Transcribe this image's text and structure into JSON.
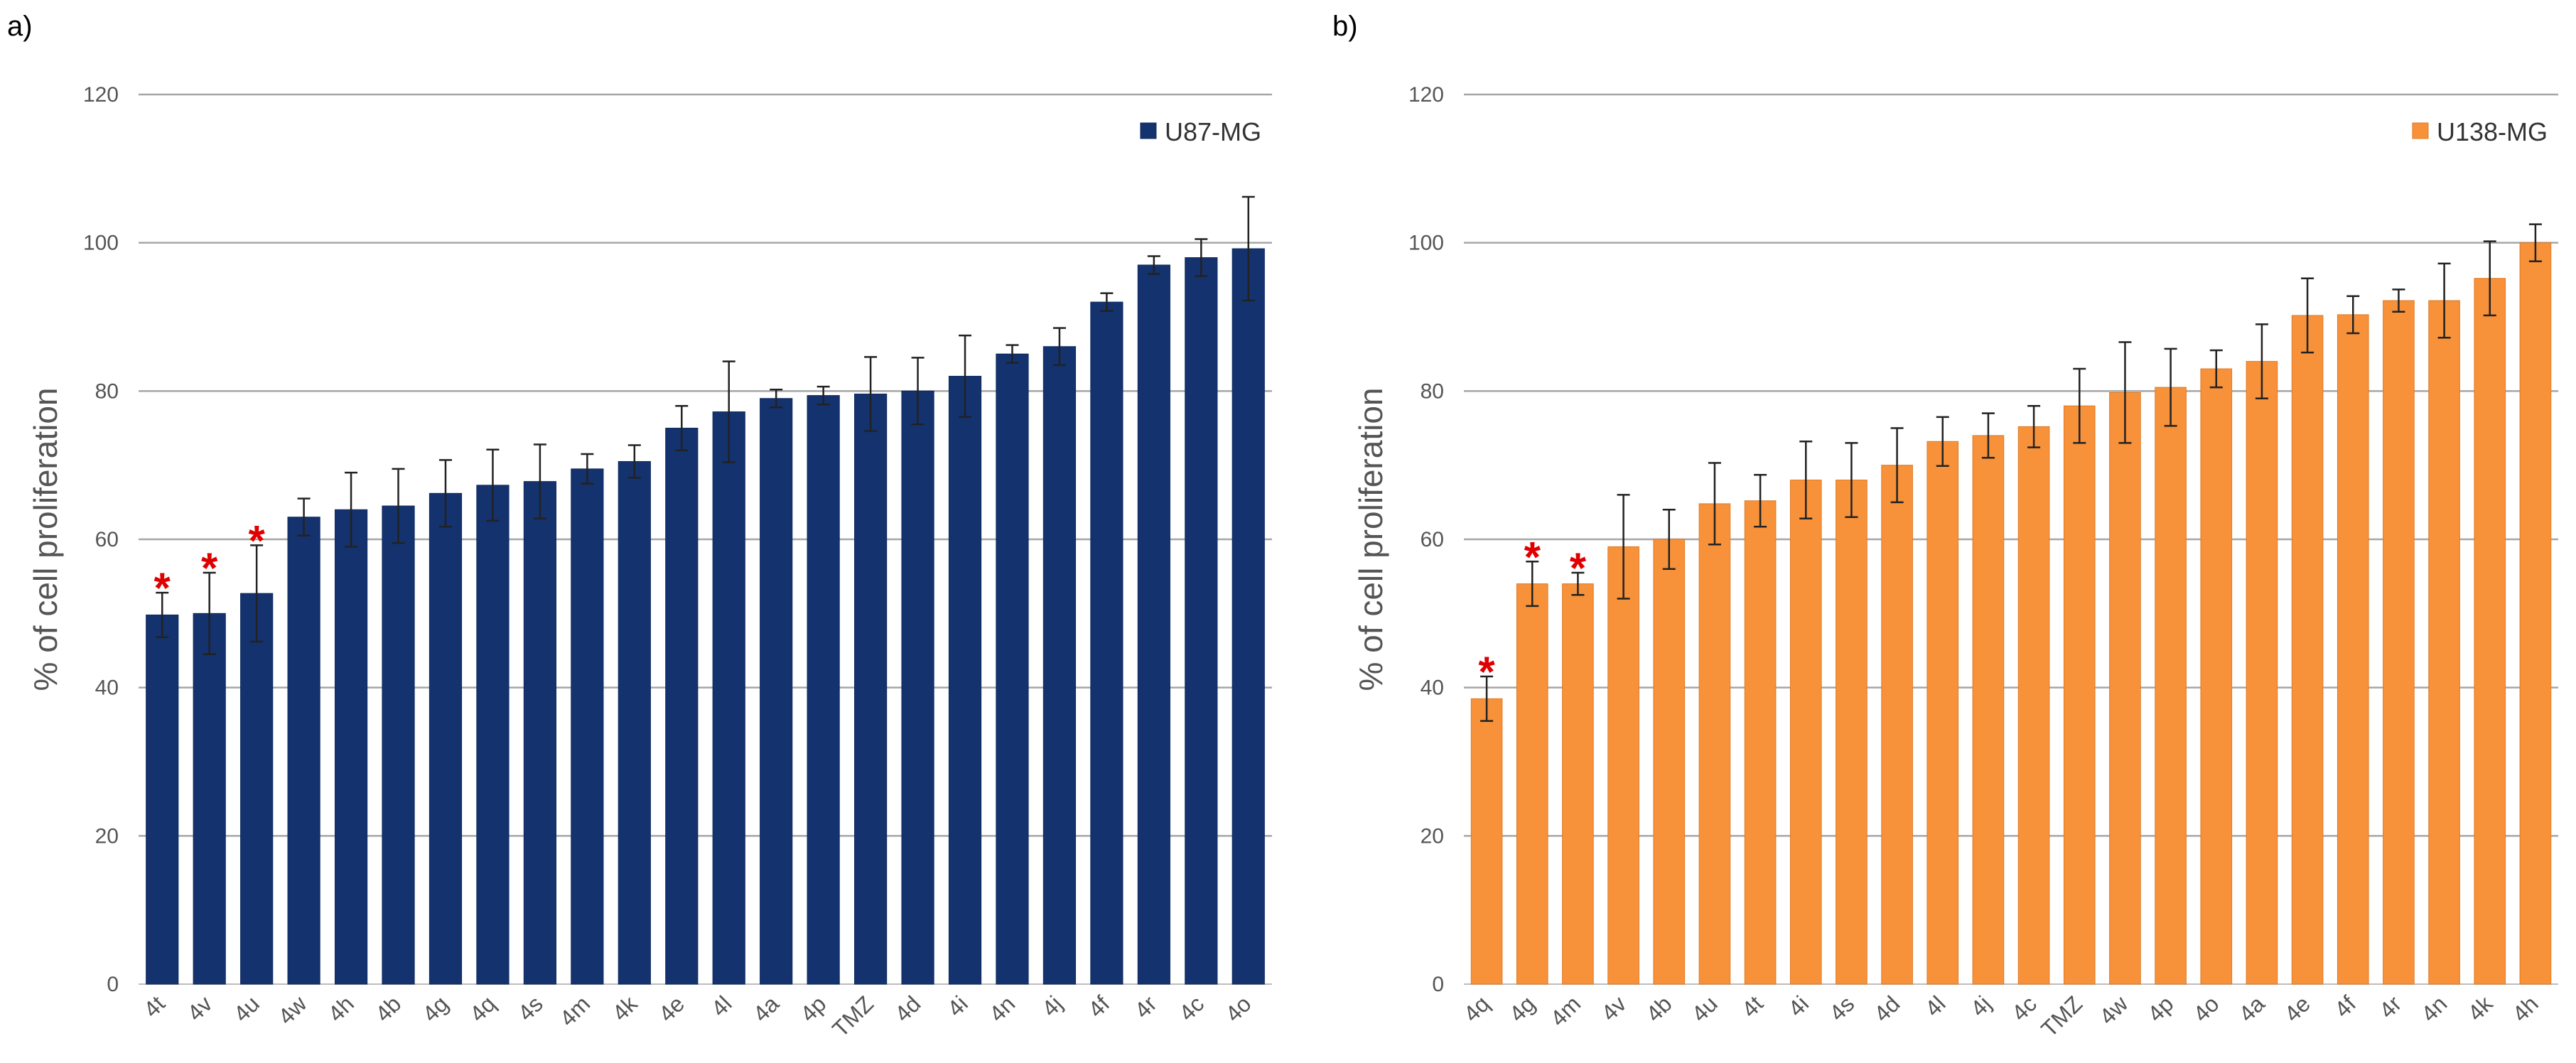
{
  "chart_data": [
    {
      "panel": "a)",
      "type": "bar",
      "ylabel": "% of cell proliferation",
      "ylim": [
        0,
        120
      ],
      "yticks": [
        "0",
        "20",
        "40",
        "60",
        "80",
        "100",
        "120"
      ],
      "legend": "U87-MG",
      "legend_position": "top-right",
      "grid": true,
      "color": "#14326e",
      "categories": [
        "4t",
        "4v",
        "4u",
        "4w",
        "4h",
        "4b",
        "4g",
        "4q",
        "4s",
        "4m",
        "4k",
        "4e",
        "4l",
        "4a",
        "4p",
        "TMZ",
        "4d",
        "4i",
        "4n",
        "4j",
        "4f",
        "4r",
        "4c",
        "4o"
      ],
      "values": [
        49.8,
        50,
        52.7,
        63,
        64,
        64.5,
        66.2,
        67.3,
        67.8,
        69.5,
        70.5,
        75,
        77.2,
        79,
        79.4,
        79.6,
        80,
        82,
        85,
        86,
        92,
        97,
        98,
        99.2
      ],
      "errors": [
        3,
        5.5,
        6.5,
        2.5,
        5,
        5,
        4.5,
        4.8,
        5,
        2,
        2.2,
        3,
        6.8,
        1.2,
        1.2,
        5,
        4.5,
        5.5,
        1.2,
        2.5,
        1.2,
        1.2,
        2.5,
        7
      ],
      "significant": [
        "4t",
        "4v",
        "4u"
      ],
      "significance_marker": "*"
    },
    {
      "panel": "b)",
      "type": "bar",
      "ylabel": "% of cell proliferation",
      "ylim": [
        0,
        120
      ],
      "yticks": [
        "0",
        "20",
        "40",
        "60",
        "80",
        "100",
        "120"
      ],
      "legend": "U138-MG",
      "legend_position": "top-right",
      "grid": true,
      "color": "#f7913a",
      "categories": [
        "4q",
        "4g",
        "4m",
        "4v",
        "4b",
        "4u",
        "4t",
        "4i",
        "4s",
        "4d",
        "4l",
        "4j",
        "4c",
        "TMZ",
        "4w",
        "4p",
        "4o",
        "4a",
        "4e",
        "4f",
        "4r",
        "4n",
        "4k",
        "4h"
      ],
      "values": [
        38.5,
        54,
        54,
        59,
        60,
        64.8,
        65.2,
        68,
        68,
        70,
        73.2,
        74,
        75.2,
        78,
        79.8,
        80.5,
        83,
        84,
        90.2,
        90.3,
        92.2,
        92.2,
        95.2,
        100
      ],
      "errors": [
        3,
        3,
        1.5,
        7,
        4,
        5.5,
        3.5,
        5.2,
        5,
        5,
        3.3,
        3,
        2.8,
        5,
        6.8,
        5.2,
        2.5,
        5,
        5,
        2.5,
        1.5,
        5,
        5,
        2.5
      ],
      "significant": [
        "4q",
        "4g",
        "4m"
      ],
      "significance_marker": "*"
    }
  ]
}
